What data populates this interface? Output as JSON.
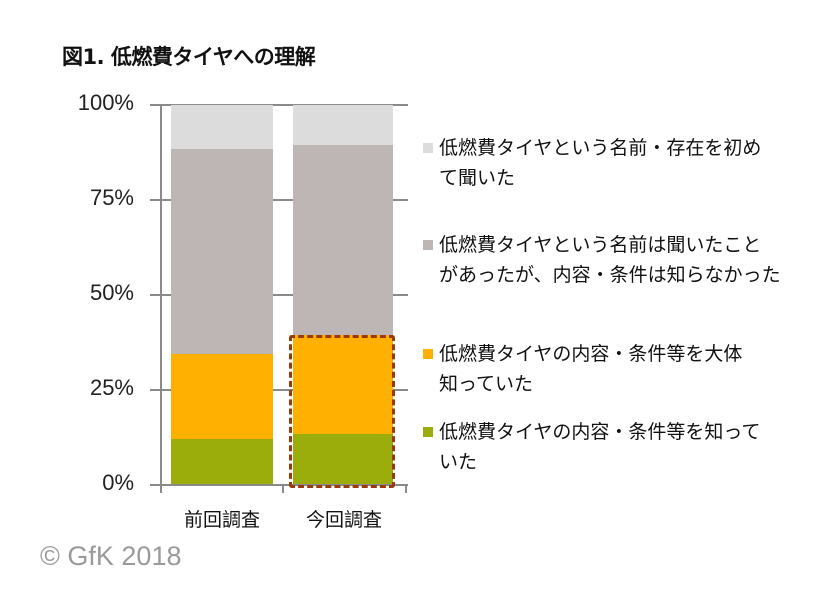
{
  "chart_data": {
    "type": "bar",
    "stacked": true,
    "normalized_percent": true,
    "title": "図1. 低燃費タイヤへの理解",
    "xlabel": "",
    "ylabel": "",
    "ylim": [
      0,
      100
    ],
    "yticks": [
      "0%",
      "25%",
      "50%",
      "75%",
      "100%"
    ],
    "categories": [
      "前回調査",
      "今回調査"
    ],
    "series": [
      {
        "name": "低燃費タイヤの内容・条件等を知っていた",
        "color": "#9bad0a",
        "values": [
          12,
          13.5
        ]
      },
      {
        "name": "低燃費タイヤの内容・条件等を大体知っていた",
        "color": "#ffb000",
        "values": [
          22.5,
          26
        ]
      },
      {
        "name": "低燃費タイヤという名前は聞いたことがあったが、内容・条件は知らなかった",
        "color": "#bdb6b4",
        "values": [
          54,
          50
        ]
      },
      {
        "name": "低燃費タイヤという名前・存在を初めて聞いた",
        "color": "#dcdcdc",
        "values": [
          11.5,
          10.5
        ]
      }
    ],
    "annotations": [
      "今回調査の上位2項目（知っていた＋大体知っていた）を赤い破線枠で強調"
    ],
    "legend_position": "right",
    "grid": false
  },
  "title": "図1. 低燃費タイヤへの理解",
  "axis": {
    "y_labels": [
      "100%",
      "75%",
      "50%",
      "25%",
      "0%"
    ],
    "x_labels": [
      "前回調査",
      "今回調査"
    ]
  },
  "legend": [
    {
      "label": "低燃費タイヤという名前・存在を初め\nて聞いた",
      "color": "#dcdcdc"
    },
    {
      "label": "低燃費タイヤという名前は聞いたこと\nがあったが、内容・条件は知らなかった",
      "color": "#bdb6b4"
    },
    {
      "label": "低燃費タイヤの内容・条件等を大体\n知っていた",
      "color": "#ffb000"
    },
    {
      "label": "低燃費タイヤの内容・条件等を知って\nいた",
      "color": "#9bad0a"
    }
  ],
  "highlight_color": "#9a3a0a",
  "copyright": "© GfK 2018"
}
